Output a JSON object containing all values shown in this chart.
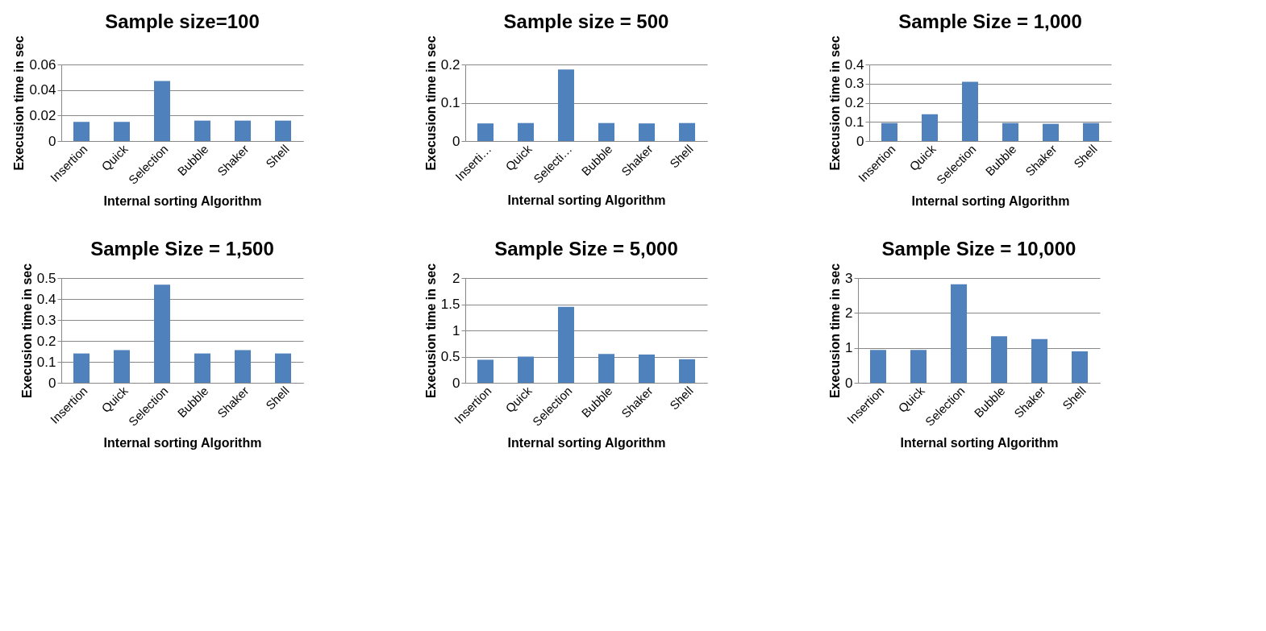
{
  "chart_data": [
    {
      "type": "bar",
      "title": "Sample size=100",
      "xlabel": "Internal sorting Algorithm",
      "ylabel": "Execusion time in sec",
      "categories": [
        "Insertion",
        "Quick",
        "Selection",
        "Bubble",
        "Shaker",
        "Shell"
      ],
      "values": [
        0.015,
        0.015,
        0.047,
        0.016,
        0.016,
        0.016
      ],
      "color": "#4f81bd",
      "ylim": [
        0,
        0.06
      ],
      "yticks": [
        0,
        0.02,
        0.04,
        0.06
      ],
      "grid": "y"
    },
    {
      "type": "bar",
      "title": "Sample size = 500",
      "xlabel": "Internal sorting Algorithm",
      "ylabel": "Execusion time in sec",
      "categories": [
        "Inserti…",
        "Quick",
        "Selecti…",
        "Bubble",
        "Shaker",
        "Shell"
      ],
      "values": [
        0.046,
        0.047,
        0.187,
        0.047,
        0.046,
        0.047
      ],
      "color": "#4f81bd",
      "ylim": [
        0,
        0.2
      ],
      "yticks": [
        0,
        0.1,
        0.2
      ],
      "grid": "y"
    },
    {
      "type": "bar",
      "title": "Sample Size = 1,000",
      "xlabel": "Internal sorting Algorithm",
      "ylabel": "Execusion time in sec",
      "categories": [
        "Insertion",
        "Quick",
        "Selection",
        "Bubble",
        "Shaker",
        "Shell"
      ],
      "values": [
        0.094,
        0.14,
        0.31,
        0.094,
        0.09,
        0.094
      ],
      "color": "#4f81bd",
      "ylim": [
        0,
        0.4
      ],
      "yticks": [
        0,
        0.1,
        0.2,
        0.3,
        0.4
      ],
      "grid": "y"
    },
    {
      "type": "bar",
      "title": "Sample Size = 1,500",
      "xlabel": "Internal sorting Algorithm",
      "ylabel": "Execusion time in sec",
      "categories": [
        "Insertion",
        "Quick",
        "Selection",
        "Bubble",
        "Shaker",
        "Shell"
      ],
      "values": [
        0.14,
        0.156,
        0.468,
        0.14,
        0.156,
        0.14
      ],
      "color": "#4f81bd",
      "ylim": [
        0,
        0.5
      ],
      "yticks": [
        0,
        0.1,
        0.2,
        0.3,
        0.4,
        0.5
      ],
      "grid": "y"
    },
    {
      "type": "bar",
      "title": "Sample Size = 5,000",
      "xlabel": "Internal sorting Algorithm",
      "ylabel": "Execusion time in sec",
      "categories": [
        "Insertion",
        "Quick",
        "Selection",
        "Bubble",
        "Shaker",
        "Shell"
      ],
      "values": [
        0.44,
        0.5,
        1.45,
        0.55,
        0.54,
        0.45
      ],
      "color": "#4f81bd",
      "ylim": [
        0,
        2
      ],
      "yticks": [
        0,
        0.5,
        1,
        1.5,
        2
      ],
      "grid": "y"
    },
    {
      "type": "bar",
      "title": "Sample Size = 10,000",
      "xlabel": "Internal sorting Algorithm",
      "ylabel": "Execusion time in sec",
      "categories": [
        "Insertion",
        "Quick",
        "Selection",
        "Bubble",
        "Shaker",
        "Shell"
      ],
      "values": [
        0.94,
        0.94,
        2.82,
        1.33,
        1.25,
        0.9
      ],
      "color": "#4f81bd",
      "ylim": [
        0,
        3
      ],
      "yticks": [
        0,
        1,
        2,
        3
      ],
      "grid": "y"
    }
  ]
}
